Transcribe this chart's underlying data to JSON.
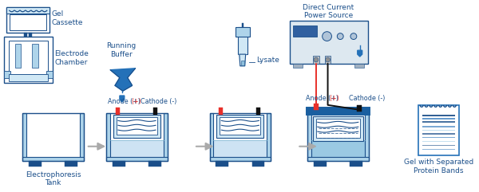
{
  "bg_color": "#ffffff",
  "blue_dark": "#1b4f8a",
  "blue_mid": "#2471b8",
  "blue_light": "#aed4ea",
  "blue_pale": "#d0e8f5",
  "blue_lid": "#1a5fa0",
  "red": "#e8302a",
  "black": "#111111",
  "gray_arrow": "#aaaaaa",
  "labels": {
    "gel_cassette": "Gel\nCassette",
    "electrode_chamber": "Electrode\nChamber",
    "running_buffer": "Running\nBuffer",
    "lysate": "Lysate",
    "power_source": "Direct Current\nPower Source",
    "electrophoresis_tank": "Electrophoresis\nTank",
    "gel_with_bands": "Gel with Separated\nProtein Bands",
    "anode": "Anode (+)",
    "cathode": "Cathode (-)"
  },
  "figsize": [
    6.0,
    2.41
  ],
  "dpi": 100
}
